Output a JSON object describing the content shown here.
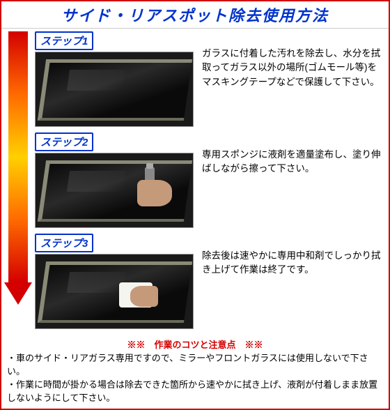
{
  "header": {
    "title": "サイド・リアスポット除去使用方法"
  },
  "colors": {
    "border": "#d00000",
    "accent_blue": "#0033cc",
    "accent_red": "#d40000",
    "gradient": [
      "#d40000",
      "#ff6a00",
      "#ffd000",
      "#ff6a00",
      "#d40000"
    ]
  },
  "steps": [
    {
      "label": "ステップ1",
      "text": "ガラスに付着した汚れを除去し、水分を拭取ってガラス以外の場所(ゴムモール等)をマスキングテープなどで保護して下さい。"
    },
    {
      "label": "ステップ2",
      "text": "専用スポンジに液剤を適量塗布し、塗り伸ばしながら擦って下さい。"
    },
    {
      "label": "ステップ3",
      "text": "除去後は速やかに専用中和剤でしっかり拭き上げて作業は終了です。"
    }
  ],
  "notes": {
    "title": "※※　作業のコツと注意点　※※",
    "lines": [
      "・車のサイド・リアガラス専用ですので、ミラーやフロントガラスには使用しないで下さい。",
      "・作業に時間が掛かる場合は除去できた箇所から速やかに拭き上げ、液剤が付着しまま放置しないようにして下さい。"
    ]
  }
}
